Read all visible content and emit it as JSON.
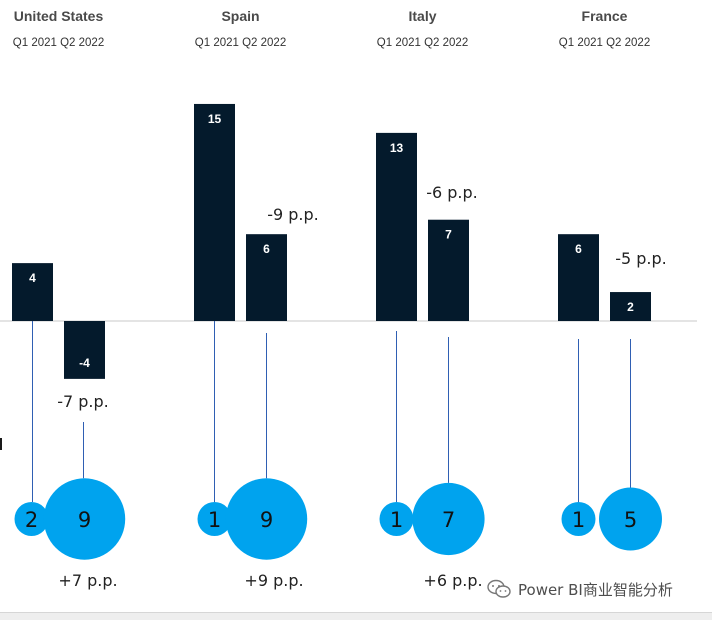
{
  "chart_data": {
    "type": "bar",
    "periods": [
      "Q1 2021",
      "Q2 2022"
    ],
    "bar_color": "#041a2c",
    "bubble_color": "#00a3ee",
    "connector_color": "#2f5fb3",
    "groups": [
      {
        "country": "United States",
        "header": "Q1 2021 Q2 2022",
        "q1_value": 4,
        "q2_value": -4,
        "change_label": "-7 p.p.",
        "bubble_small": 2,
        "bubble_large": 9,
        "bubble_change": "+7 p.p."
      },
      {
        "country": "Spain",
        "header": "Q1 2021 Q2 2022",
        "q1_value": 15,
        "q2_value": 6,
        "change_label": "-9 p.p.",
        "bubble_small": 1,
        "bubble_large": 9,
        "bubble_change": "+9 p.p."
      },
      {
        "country": "Italy",
        "header": "Q1 2021 Q2 2022",
        "q1_value": 13,
        "q2_value": 7,
        "change_label": "-6 p.p.",
        "bubble_small": 1,
        "bubble_large": 7,
        "bubble_change": "+6 p.p."
      },
      {
        "country": "France",
        "header": "Q1 2021 Q2 2022",
        "q1_value": 6,
        "q2_value": 2,
        "change_label": "-5 p.p.",
        "bubble_small": 1,
        "bubble_large": 5,
        "bubble_change": ""
      }
    ]
  },
  "watermark": {
    "text": "Power BI商业智能分析",
    "icon": "wechat-icon"
  }
}
